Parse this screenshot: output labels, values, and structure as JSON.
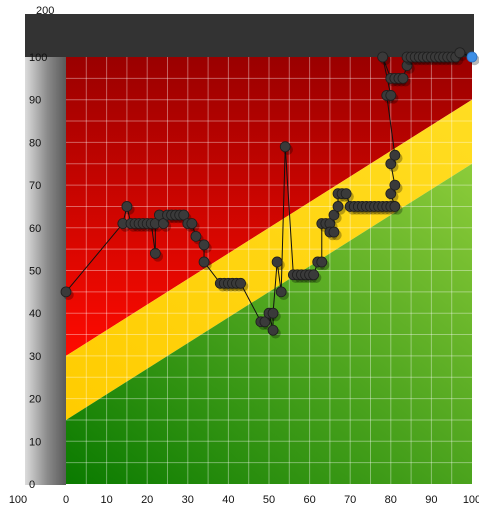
{
  "chart_data": {
    "type": "scatter",
    "title": "",
    "xlabel": "",
    "ylabel": "",
    "xlim": [
      0,
      100
    ],
    "ylim": [
      0,
      100
    ],
    "x_ticks": [
      0,
      10,
      20,
      30,
      40,
      50,
      60,
      70,
      80,
      90,
      100
    ],
    "x_axis_outer_label": "100",
    "y_ticks": [
      0,
      10,
      20,
      30,
      40,
      50,
      60,
      70,
      80,
      90,
      100
    ],
    "y_axis_top_label": "200",
    "grid": true,
    "bands": [
      {
        "name": "green",
        "color": "#2f9e1a",
        "y_at_x0": 0,
        "upper_at_x0": 15,
        "upper_at_x100": 75
      },
      {
        "name": "yellow",
        "color": "#ffd000",
        "lower_at_x0": 15,
        "lower_at_x100": 75,
        "upper_at_x0": 30,
        "upper_at_x100": 90
      },
      {
        "name": "red",
        "color": "#d80000",
        "lower_at_x0": 30,
        "lower_at_x100": 90,
        "upper": 100
      }
    ],
    "series": [
      {
        "marker_color": "#3a3a3a",
        "last_marker_color": "#3d8fe6",
        "points": [
          [
            0,
            45
          ],
          [
            14,
            61
          ],
          [
            15,
            65
          ],
          [
            16,
            61
          ],
          [
            17,
            61
          ],
          [
            18,
            61
          ],
          [
            19,
            61
          ],
          [
            20,
            61
          ],
          [
            21,
            61
          ],
          [
            22,
            54
          ],
          [
            22,
            61
          ],
          [
            23,
            63
          ],
          [
            24,
            61
          ],
          [
            25,
            63
          ],
          [
            26,
            63
          ],
          [
            27,
            63
          ],
          [
            28,
            63
          ],
          [
            29,
            63
          ],
          [
            30,
            61
          ],
          [
            31,
            61
          ],
          [
            32,
            58
          ],
          [
            34,
            56
          ],
          [
            34,
            52
          ],
          [
            38,
            47
          ],
          [
            39,
            47
          ],
          [
            40,
            47
          ],
          [
            41,
            47
          ],
          [
            42,
            47
          ],
          [
            43,
            47
          ],
          [
            48,
            38
          ],
          [
            49,
            38
          ],
          [
            50,
            40
          ],
          [
            51,
            36
          ],
          [
            51,
            40
          ],
          [
            52,
            52
          ],
          [
            53,
            45
          ],
          [
            54,
            79
          ],
          [
            56,
            49
          ],
          [
            57,
            49
          ],
          [
            58,
            49
          ],
          [
            59,
            49
          ],
          [
            60,
            49
          ],
          [
            61,
            49
          ],
          [
            62,
            52
          ],
          [
            63,
            52
          ],
          [
            63,
            61
          ],
          [
            64,
            61
          ],
          [
            65,
            61
          ],
          [
            65,
            59
          ],
          [
            66,
            59
          ],
          [
            66,
            63
          ],
          [
            67,
            65
          ],
          [
            67,
            68
          ],
          [
            68,
            68
          ],
          [
            69,
            68
          ],
          [
            70,
            65
          ],
          [
            71,
            65
          ],
          [
            72,
            65
          ],
          [
            73,
            65
          ],
          [
            74,
            65
          ],
          [
            75,
            65
          ],
          [
            76,
            65
          ],
          [
            77,
            65
          ],
          [
            78,
            65
          ],
          [
            79,
            65
          ],
          [
            80,
            65
          ],
          [
            81,
            65
          ],
          [
            80,
            68
          ],
          [
            81,
            70
          ],
          [
            80,
            75
          ],
          [
            81,
            77
          ],
          [
            79,
            91
          ],
          [
            80,
            91
          ],
          [
            78,
            100
          ],
          [
            80,
            95
          ],
          [
            81,
            95
          ],
          [
            82,
            95
          ],
          [
            83,
            95
          ],
          [
            84,
            98
          ],
          [
            84,
            100
          ],
          [
            85,
            100
          ],
          [
            86,
            100
          ],
          [
            87,
            100
          ],
          [
            88,
            100
          ],
          [
            89,
            100
          ],
          [
            90,
            100
          ],
          [
            91,
            100
          ],
          [
            92,
            100
          ],
          [
            93,
            100
          ],
          [
            94,
            100
          ],
          [
            95,
            100
          ],
          [
            96,
            100
          ],
          [
            97,
            101
          ],
          [
            100,
            100
          ]
        ]
      }
    ]
  }
}
